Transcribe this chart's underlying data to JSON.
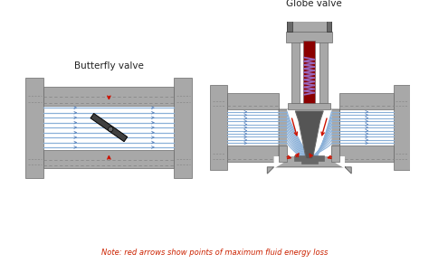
{
  "butterfly_label": "Butterfly valve",
  "globe_label": "Globe valve",
  "note_text": "Note: red arrows show points of maximum fluid energy loss",
  "note_color": "#cc2200",
  "bg": "#ffffff",
  "gray": "#a8a8a8",
  "gray_dark": "#686868",
  "gray_mid": "#888888",
  "gray_light": "#c0c0c0",
  "flow_line": "#8ab0d8",
  "flow_arrow": "#5580bb",
  "red_arr": "#cc1100",
  "dark_red": "#7a1010",
  "crimson": "#8b0000",
  "purple": "#9966bb",
  "disk_color": "#404040",
  "plug_color": "#555555",
  "black": "#222222"
}
